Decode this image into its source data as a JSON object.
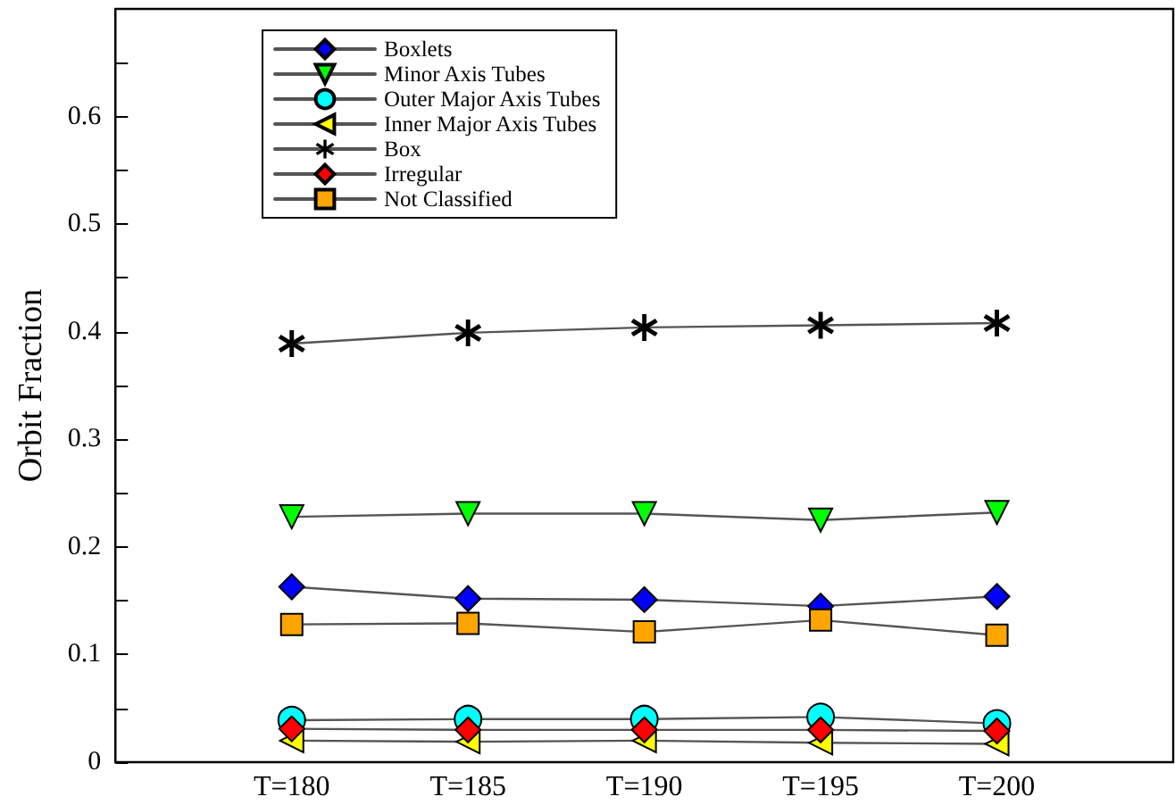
{
  "chart_data": {
    "type": "line",
    "ylabel": "Orbit Fraction",
    "categories": [
      "T=180",
      "T=185",
      "T=190",
      "T=195",
      "T=200"
    ],
    "ylim": [
      0,
      0.7
    ],
    "yticks": [
      0,
      {
        "value": 0.05,
        "label": null
      },
      0.1,
      {
        "value": 0.15,
        "label": null
      },
      0.2,
      {
        "value": 0.25,
        "label": null
      },
      0.3,
      {
        "value": 0.35,
        "label": null
      },
      0.4,
      {
        "value": 0.45,
        "label": null
      },
      0.5,
      {
        "value": 0.55,
        "label": null
      },
      0.6,
      {
        "value": 0.65,
        "label": null
      }
    ],
    "grid": false,
    "legend": "top left",
    "line_style": "solid",
    "series": [
      {
        "name": "Boxlets",
        "color": "#0000ff",
        "marker": "diamond",
        "values": [
          0.163,
          0.152,
          0.151,
          0.145,
          0.154
        ]
      },
      {
        "name": "Minor Axis Tubes",
        "color": "#00ff00",
        "marker": "triangle-down",
        "values": [
          0.228,
          0.231,
          0.231,
          0.225,
          0.232
        ]
      },
      {
        "name": "Outer Major Axis Tubes",
        "color": "#00ffff",
        "marker": "circle",
        "values": [
          0.039,
          0.04,
          0.04,
          0.042,
          0.036
        ]
      },
      {
        "name": "Inner Major Axis Tubes",
        "color": "#ffff00",
        "marker": "triangle-left",
        "values": [
          0.02,
          0.019,
          0.02,
          0.018,
          0.017
        ]
      },
      {
        "name": "Box",
        "color": "#000000",
        "marker": "star",
        "values": [
          0.389,
          0.399,
          0.404,
          0.406,
          0.408
        ]
      },
      {
        "name": "Irregular",
        "color": "#ff0000",
        "marker": "diamond",
        "values": [
          0.031,
          0.03,
          0.03,
          0.03,
          0.029
        ]
      },
      {
        "name": "Not Classified",
        "color": "#ffa500",
        "marker": "square",
        "values": [
          0.128,
          0.129,
          0.121,
          0.132,
          0.118
        ]
      }
    ]
  }
}
